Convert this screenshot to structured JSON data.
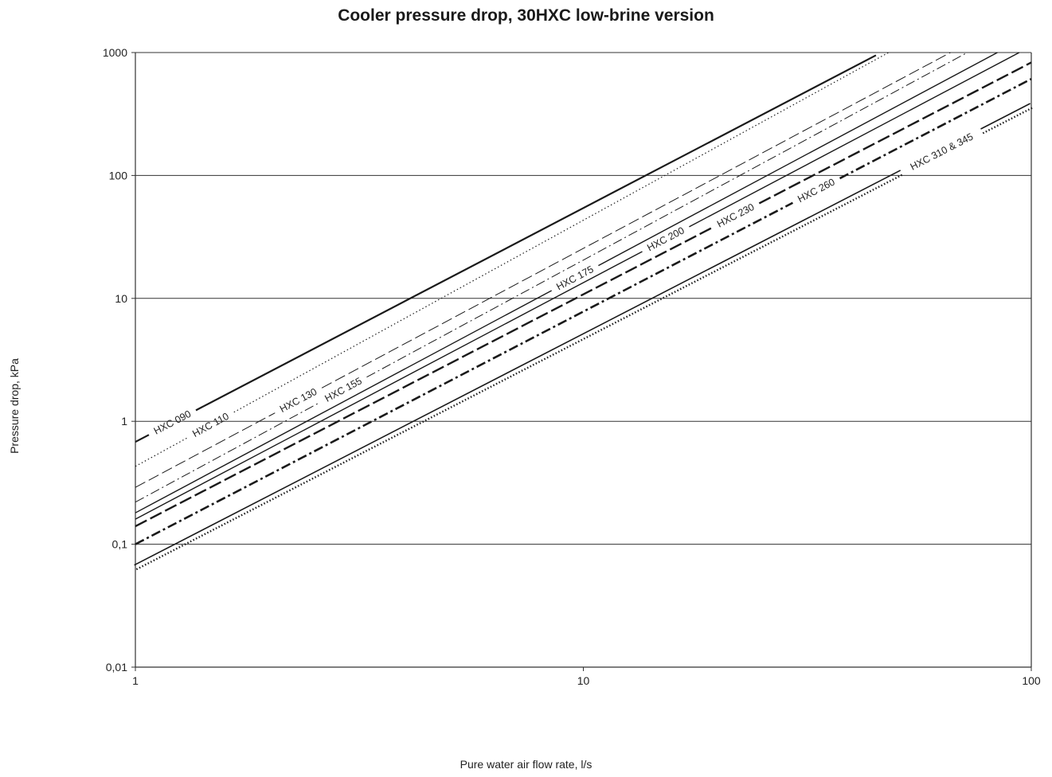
{
  "chart_data": {
    "type": "line",
    "title": "Cooler pressure drop, 30HXC low-brine version",
    "xlabel": "Pure water air flow rate, l/s",
    "ylabel": "Pressure drop, kPa",
    "x_scale": "log",
    "y_scale": "log",
    "xlim": [
      1,
      100
    ],
    "ylim": [
      0.01,
      1000
    ],
    "x_ticks": [
      "1",
      "10",
      "100"
    ],
    "y_ticks": [
      "0,01",
      "0,1",
      "1",
      "10",
      "100",
      "1000"
    ],
    "grid": "horizontal",
    "series": [
      {
        "name": "HXC 090",
        "style": "solid-thick",
        "x": [
          1,
          45
        ],
        "y": [
          0.68,
          950
        ]
      },
      {
        "name": "HXC 110",
        "style": "dotted",
        "x": [
          1,
          48
        ],
        "y": [
          0.43,
          1000
        ]
      },
      {
        "name": "HXC 130",
        "style": "long-dash",
        "x": [
          1,
          66
        ],
        "y": [
          0.29,
          1000
        ]
      },
      {
        "name": "HXC 155",
        "style": "dash-dot",
        "x": [
          1,
          72
        ],
        "y": [
          0.22,
          1000
        ]
      },
      {
        "name": "HXC 175",
        "style": "solid",
        "x": [
          1,
          84
        ],
        "y": [
          0.18,
          1000
        ]
      },
      {
        "name": "HXC 200",
        "style": "solid",
        "x": [
          1,
          94
        ],
        "y": [
          0.16,
          1000
        ]
      },
      {
        "name": "HXC 230",
        "style": "heavy-dash",
        "x": [
          1,
          100
        ],
        "y": [
          0.14,
          830
        ]
      },
      {
        "name": "HXC 260",
        "style": "heavy-dash-dot",
        "x": [
          1,
          100
        ],
        "y": [
          0.1,
          610
        ]
      },
      {
        "name": "HXC 310 & 345",
        "style": "solid-and-dotted",
        "x": [
          1,
          100
        ],
        "y": [
          0.065,
          370
        ]
      }
    ],
    "annotations": [
      "HXC 090",
      "HXC 110",
      "HXC 130",
      "HXC 155",
      "HXC 175",
      "HXC 200",
      "HXC 230",
      "HXC 260",
      "HXC 310 & 345"
    ]
  }
}
